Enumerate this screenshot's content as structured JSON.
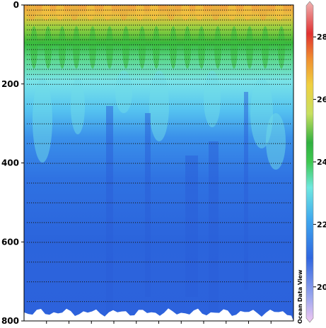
{
  "chart_data": {
    "type": "heatmap",
    "title": "",
    "xlabel": "",
    "ylabel": "",
    "ylim": [
      800,
      0
    ],
    "y_ticks": [
      "0",
      "200",
      "400",
      "600",
      "800"
    ],
    "y_tick_values": [
      0,
      200,
      400,
      600,
      800
    ],
    "colorbar": {
      "range": [
        19,
        29
      ],
      "ticks": [
        "20",
        "22",
        "24",
        "26",
        "28"
      ],
      "tick_values": [
        20,
        22,
        24,
        26,
        28
      ]
    },
    "sample_depths": [
      0,
      12,
      25,
      37,
      50,
      62,
      75,
      87,
      100,
      112,
      125,
      137,
      150,
      162,
      175,
      187,
      200,
      250,
      300,
      350,
      400,
      450,
      500,
      550,
      600,
      650,
      700,
      750
    ],
    "watermark": "Ocean Data View"
  }
}
